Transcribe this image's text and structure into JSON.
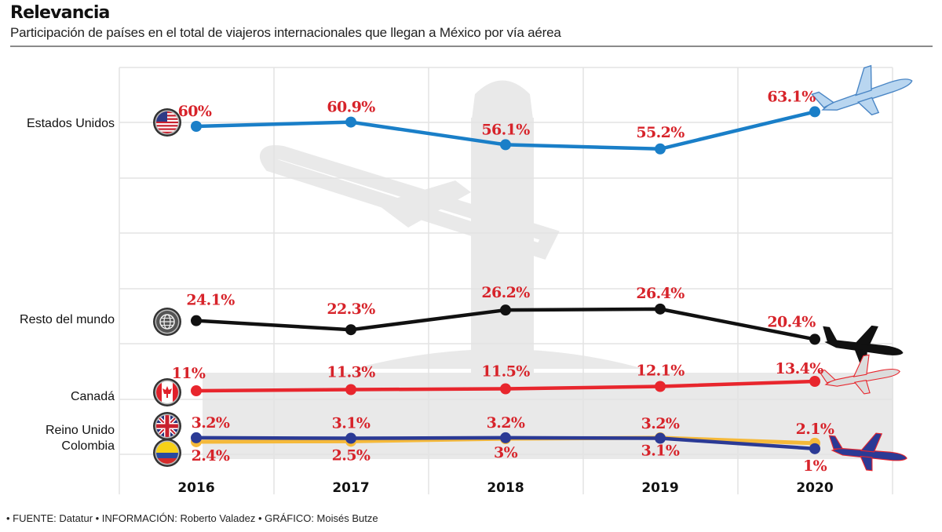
{
  "header": {
    "title": "Relevancia",
    "subtitle": "Participación de países en el total de viajeros internacionales que llegan a México por vía aérea"
  },
  "footer": {
    "text": "• FUENTE: Datatur • INFORMACIÓN: Roberto Valadez • GRÁFICO: Moisés Butze"
  },
  "colors": {
    "label": "#d7232a",
    "grid": "#e3e3e3",
    "silhouette": "#e9e9e9"
  },
  "chart_data": {
    "type": "line",
    "title": "Relevancia",
    "subtitle": "Participación de países en el total de viajeros internacionales que llegan a México por vía aérea",
    "xlabel": "",
    "ylabel": "",
    "x": [
      "2016",
      "2017",
      "2018",
      "2019",
      "2020"
    ],
    "unit": "%",
    "grid": true,
    "legend": "left (category labels with flag icons)",
    "series": [
      {
        "name": "Estados Unidos",
        "icon": "us-flag-icon",
        "color": "#1a7fc8",
        "values": [
          60,
          60.9,
          56.1,
          55.2,
          63.1
        ],
        "labels": [
          "60%",
          "60.9%",
          "56.1%",
          "55.2%",
          "63.1%"
        ],
        "label_pos": "above",
        "end_icon": "airplane-light-blue-icon"
      },
      {
        "name": "Resto del mundo",
        "icon": "globe-icon",
        "color": "#111111",
        "values": [
          24.1,
          22.3,
          26.2,
          26.4,
          20.4
        ],
        "labels": [
          "24.1%",
          "22.3%",
          "26.2%",
          "26.4%",
          "20.4%"
        ],
        "label_pos": "above",
        "end_icon": "airplane-black-icon"
      },
      {
        "name": "Canadá",
        "icon": "canada-flag-icon",
        "color": "#e8262d",
        "values": [
          11,
          11.3,
          11.5,
          12.1,
          13.4
        ],
        "labels": [
          "11%",
          "11.3%",
          "11.5%",
          "12.1%",
          "13.4%"
        ],
        "label_pos": "above",
        "end_icon": "airplane-gray-red-icon"
      },
      {
        "name": "Reino Unido",
        "icon": "uk-flag-icon",
        "color": "#2b3a95",
        "values": [
          3.2,
          3.1,
          3.2,
          3.1,
          1
        ],
        "labels": [
          "3.2%",
          "3.1%",
          "3.2%",
          "3.1%",
          "1%"
        ],
        "label_pos": "mixed",
        "end_icon": "airplane-navy-icon"
      },
      {
        "name": "Colombia",
        "icon": "colombia-flag-icon",
        "color": "#f5b93a",
        "values": [
          2.4,
          2.5,
          3,
          3.2,
          2.1
        ],
        "labels": [
          "2.4%",
          "2.5%",
          "3%",
          "3.2%",
          "2.1%"
        ],
        "label_pos": "mixed"
      }
    ],
    "category_labels": [
      "Estados Unidos",
      "Resto del mundo",
      "Canadá",
      "Reino Unido",
      "Colombia"
    ]
  }
}
